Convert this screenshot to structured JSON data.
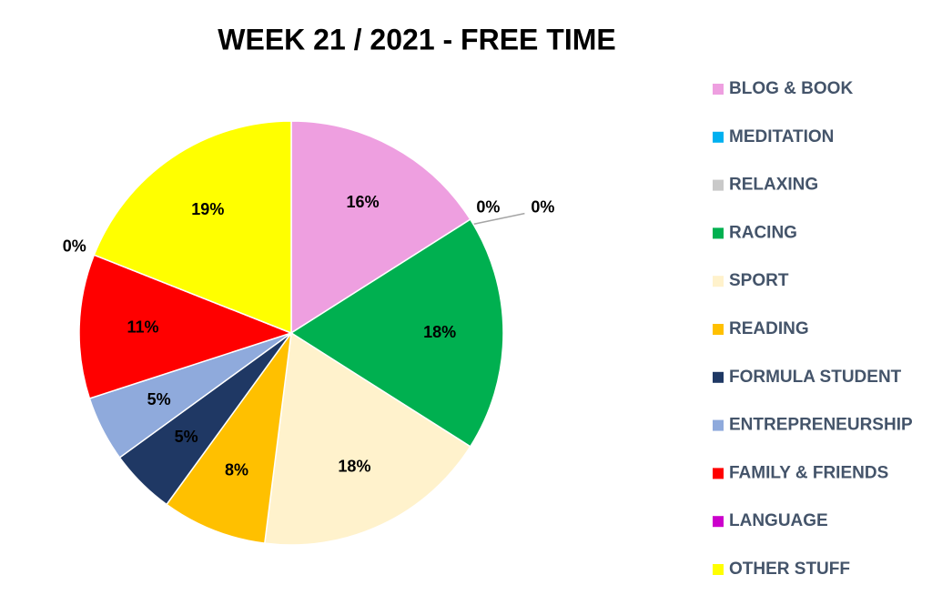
{
  "chart_data": {
    "type": "pie",
    "title": "WEEK 21 / 2021 - FREE TIME",
    "categories": [
      "BLOG & BOOK",
      "MEDITATION",
      "RELAXING",
      "RACING",
      "SPORT",
      "READING",
      "FORMULA STUDENT",
      "ENTREPRENEURSHIP",
      "FAMILY & FRIENDS",
      "LANGUAGE",
      "OTHER STUFF"
    ],
    "values": [
      16,
      0,
      0,
      18,
      18,
      8,
      5,
      5,
      11,
      0,
      19
    ],
    "value_labels": [
      "16%",
      "0%",
      "0%",
      "18%",
      "18%",
      "8%",
      "5%",
      "5%",
      "11%",
      "0%",
      "19%"
    ],
    "colors": [
      "#ee9fe0",
      "#00b0f0",
      "#c9c9c9",
      "#00b050",
      "#fff2cc",
      "#ffc000",
      "#1f3864",
      "#8faadc",
      "#ff0000",
      "#cc00cc",
      "#ffff00"
    ],
    "legend": "right"
  }
}
